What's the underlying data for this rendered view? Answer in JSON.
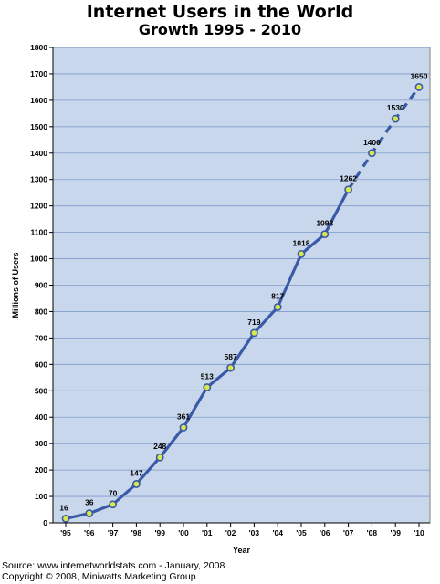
{
  "chart_data": {
    "type": "line",
    "title": "Internet Users in the World",
    "subtitle": "Growth 1995 - 2010",
    "xlabel": "Year",
    "ylabel": "Millions of Users",
    "ylim": [
      0,
      1800
    ],
    "yticks": [
      0,
      100,
      200,
      300,
      400,
      500,
      600,
      700,
      800,
      900,
      1000,
      1100,
      1200,
      1300,
      1400,
      1500,
      1600,
      1700,
      1800
    ],
    "categories": [
      "'95",
      "'96",
      "'97",
      "'98",
      "'99",
      "'00",
      "'01",
      "'02",
      "'03",
      "'04",
      "'05",
      "'06",
      "'07",
      "'08",
      "'09",
      "'10"
    ],
    "series": [
      {
        "values": [
          16,
          36,
          70,
          147,
          248,
          361,
          513,
          587,
          719,
          817,
          1018,
          1093,
          1262,
          1400,
          1530,
          1650
        ],
        "data_labels": [
          "16",
          "36",
          "70",
          "147",
          "248",
          "361",
          "513",
          "587",
          "719",
          "817",
          "1018",
          "1093",
          "1262",
          "1400",
          "1530",
          "1650"
        ],
        "projected_from_index": 12
      }
    ],
    "grid": true,
    "legend": "none",
    "colors": {
      "plot_background": "#c9d7ec",
      "grid": "#7f9acb",
      "line": "#3a5aa8",
      "marker_fill": "#d8e84a",
      "marker_edge": "#3a5aa8"
    }
  },
  "footer": {
    "source": "Source: www.internetworldstats.com - January, 2008",
    "copyright": "Copyright © 2008, Miniwatts Marketing Group"
  }
}
